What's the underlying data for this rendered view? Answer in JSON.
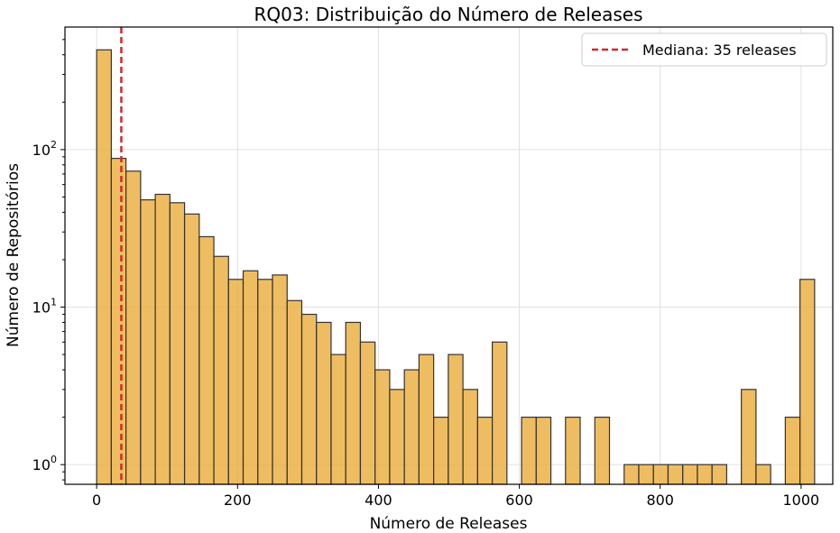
{
  "chart_data": {
    "type": "bar",
    "title": "RQ03: Distribuição do Número de Releases",
    "xlabel": "Número de Releases",
    "ylabel": "Número de Repositórios",
    "yscale": "log",
    "xlim": [
      -45,
      1045
    ],
    "ylim": [
      0.75,
      600
    ],
    "x_ticks": [
      {
        "value": 0,
        "label": "0"
      },
      {
        "value": 200,
        "label": "200"
      },
      {
        "value": 400,
        "label": "400"
      },
      {
        "value": 600,
        "label": "600"
      },
      {
        "value": 800,
        "label": "800"
      },
      {
        "value": 1000,
        "label": "1000"
      }
    ],
    "y_ticks": [
      {
        "value": 1,
        "base": "10",
        "exp": "0"
      },
      {
        "value": 10,
        "base": "10",
        "exp": "1"
      },
      {
        "value": 100,
        "base": "10",
        "exp": "2"
      }
    ],
    "grid": true,
    "bin_start": 0,
    "bin_width": 20.8,
    "values": [
      430,
      88,
      73,
      48,
      52,
      46,
      39,
      28,
      21,
      15,
      17,
      15,
      16,
      11,
      9,
      8,
      5,
      8,
      6,
      4,
      3,
      4,
      5,
      2,
      5,
      3,
      2,
      6,
      0,
      2,
      2,
      0,
      2,
      0,
      2,
      0,
      1,
      1,
      1,
      1,
      1,
      1,
      1,
      0,
      3,
      1,
      0,
      2,
      15
    ],
    "bar_color": "#EBAC3A",
    "median": {
      "value": 35,
      "label": "Mediana: 35 releases",
      "color": "#d62728"
    },
    "legend_position": "top-right"
  }
}
